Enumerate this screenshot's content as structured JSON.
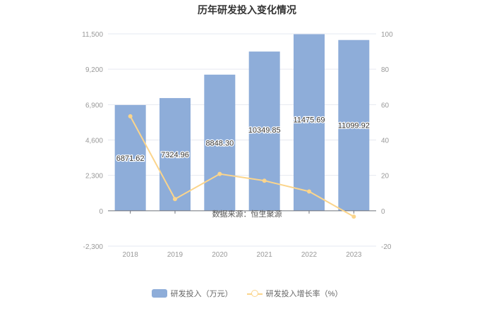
{
  "chart_data": {
    "type": "bar+line",
    "title": "历年研发投入变化情况",
    "categories": [
      "2018",
      "2019",
      "2020",
      "2021",
      "2022",
      "2023"
    ],
    "series": [
      {
        "name": "研发投入（万元）",
        "type": "bar",
        "axis": "left",
        "values": [
          6871.62,
          7324.96,
          8848.3,
          10349.85,
          11475.69,
          11099.92
        ],
        "labels": [
          "6871.62",
          "7324.96",
          "8848.30",
          "10349.85",
          "11475.69",
          "11099.92"
        ],
        "color": "#8eadd9"
      },
      {
        "name": "研发投入增长率（%）",
        "type": "line",
        "axis": "right",
        "values": [
          53.4,
          6.6,
          20.8,
          17.0,
          10.9,
          -3.3
        ],
        "color": "#fbd58c"
      }
    ],
    "left_axis": {
      "ylim": [
        -2300,
        11500
      ],
      "ticks": [
        "11,500",
        "9,200",
        "6,900",
        "4,600",
        "2,300",
        "0",
        "-2,300"
      ],
      "tick_values": [
        11500,
        9200,
        6900,
        4600,
        2300,
        0,
        -2300
      ]
    },
    "right_axis": {
      "ylim": [
        -20,
        100
      ],
      "ticks": [
        "100",
        "80",
        "60",
        "40",
        "20",
        "0",
        "-20"
      ],
      "tick_values": [
        100,
        80,
        60,
        40,
        20,
        0,
        -20
      ]
    },
    "annotation": "数据来源：恒生聚源",
    "legend_position": "bottom",
    "grid": true
  }
}
